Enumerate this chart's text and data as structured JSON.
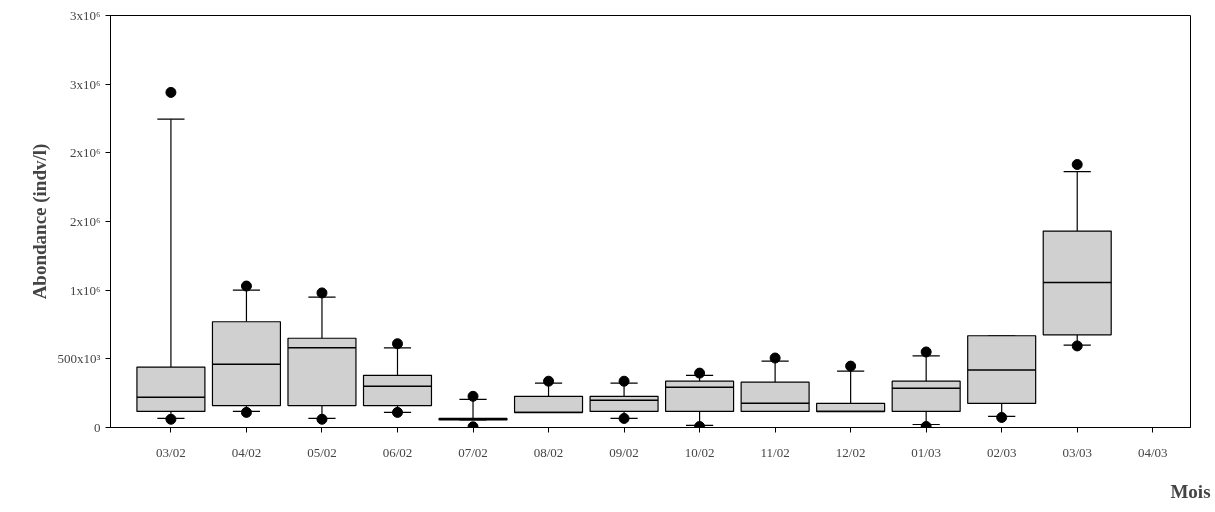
{
  "chart_data": {
    "type": "box",
    "xlabel": "Mois",
    "ylabel": "Abondance (indv/l)",
    "categories": [
      "03/02",
      "04/02",
      "05/02",
      "06/02",
      "07/02",
      "08/02",
      "09/02",
      "10/02",
      "11/02",
      "12/02",
      "01/03",
      "02/03",
      "03/03",
      "04/03"
    ],
    "ylim": [
      0,
      3000000
    ],
    "yticks": [
      0,
      {
        "value": 500000,
        "label": "500x10³"
      },
      {
        "value": 1000000,
        "label": "1x10⁶"
      },
      {
        "value": 1500000,
        "label": "2x10⁶"
      },
      {
        "value": 2000000,
        "label": "2x10⁶"
      },
      {
        "value": 2500000,
        "label": "3x10⁶"
      },
      {
        "value": 3000000,
        "label": "3x10⁶"
      }
    ],
    "grid": false,
    "series": [
      {
        "color": "#d0d0d0",
        "boxes": [
          {
            "low": 66000,
            "q1": 117000,
            "median": 220000,
            "q3": 440000,
            "high": 2245000,
            "outliers": [
              2440000,
              60000
            ]
          },
          {
            "low": 117000,
            "q1": 160000,
            "median": 460000,
            "q3": 770000,
            "high": 1000000,
            "outliers": [
              1030000,
              110000
            ]
          },
          {
            "low": 66000,
            "q1": 160000,
            "median": 580000,
            "q3": 650000,
            "high": 950000,
            "outliers": [
              980000,
              60000
            ]
          },
          {
            "low": 110000,
            "q1": 160000,
            "median": 300000,
            "q3": 380000,
            "high": 580000,
            "outliers": [
              610000,
              110000
            ]
          },
          {
            "low": 55000,
            "q1": 55000,
            "median": 60000,
            "q3": 66000,
            "high": 205000,
            "outliers": [
              227000,
              5000
            ]
          },
          {
            "low": 110000,
            "q1": 110000,
            "median": 110000,
            "q3": 227000,
            "high": 323000,
            "outliers": [
              337000
            ]
          },
          {
            "low": 66000,
            "q1": 117000,
            "median": 198000,
            "q3": 227000,
            "high": 323000,
            "outliers": [
              337000,
              66000
            ]
          },
          {
            "low": 15000,
            "q1": 117000,
            "median": 293000,
            "q3": 337000,
            "high": 380000,
            "outliers": [
              396000,
              7000
            ]
          },
          {
            "low": 117000,
            "q1": 117000,
            "median": 176000,
            "q3": 330000,
            "high": 484000,
            "outliers": [
              506000
            ]
          },
          {
            "low": 117000,
            "q1": 117000,
            "median": 117000,
            "q3": 176000,
            "high": 411000,
            "outliers": [
              447000
            ]
          },
          {
            "low": 22000,
            "q1": 117000,
            "median": 286000,
            "q3": 337000,
            "high": 521000,
            "outliers": [
              550000,
              7000
            ]
          },
          {
            "low": 81000,
            "q1": 176000,
            "median": 418000,
            "q3": 668000,
            "high": 668000,
            "outliers": [
              73000
            ]
          },
          {
            "low": 600000,
            "q1": 675000,
            "median": 1056000,
            "q3": 1430000,
            "high": 1863000,
            "outliers": [
              1915000,
              594000
            ]
          },
          null
        ]
      }
    ]
  }
}
